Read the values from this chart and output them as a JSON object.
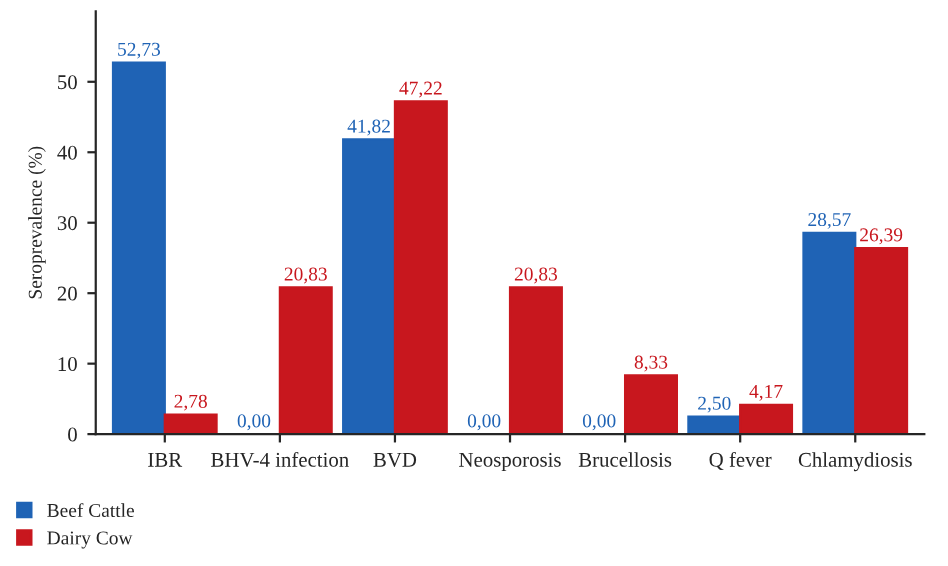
{
  "chart_data": {
    "type": "bar",
    "ylabel": "Seroprevalence (%)",
    "categories": [
      "IBR",
      "BHV-4 infection",
      "BVD",
      "Neosporosis",
      "Brucellosis",
      "Q fever",
      "Chlamydiosis"
    ],
    "series": [
      {
        "name": "Beef Cattle",
        "color": "#1f63b5",
        "values": [
          52.73,
          0,
          41.82,
          0,
          0,
          2.5,
          28.57
        ],
        "value_labels": [
          "52,73",
          "0,00",
          "41,82",
          "0,00",
          "0,00",
          "2,50",
          "28,57"
        ]
      },
      {
        "name": "Dairy Cow",
        "color": "#c8171e",
        "values": [
          2.78,
          20.83,
          47.22,
          20.83,
          8.33,
          4.17,
          26.39
        ],
        "value_labels": [
          "2,78",
          "20,83",
          "47,22",
          "20,83",
          "8,33",
          "4,17",
          "26,39"
        ]
      }
    ],
    "ylim": [
      0,
      60
    ],
    "yticks": [
      0,
      10,
      20,
      30,
      40,
      50
    ],
    "grid": false,
    "legend": "bottom left"
  }
}
